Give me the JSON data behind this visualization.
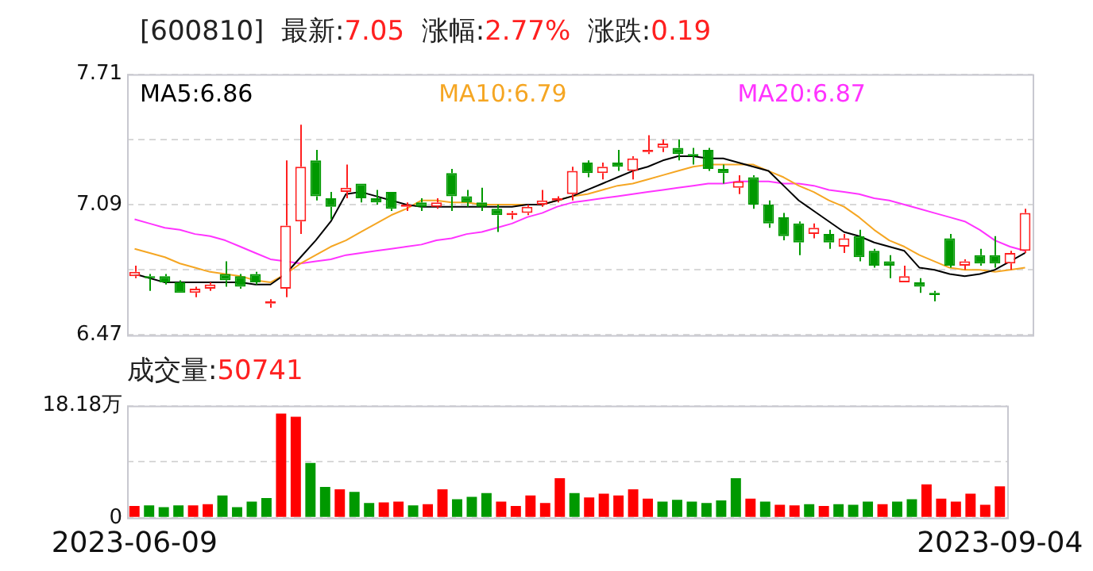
{
  "chart_data": [
    {
      "type": "candlestick",
      "title": "[600810]  最新:7.05  涨幅:2.77%  涨跌:0.19",
      "categories": [
        null,
        null,
        null,
        null,
        null,
        null,
        null,
        null,
        null,
        null,
        null,
        null,
        null,
        null,
        null,
        null,
        null,
        null,
        null,
        null,
        null,
        null,
        null,
        null,
        null,
        null,
        null,
        null,
        null,
        null,
        null,
        null,
        null,
        null,
        null,
        null,
        null,
        null,
        null,
        null,
        null,
        null,
        null,
        null,
        null,
        null,
        null,
        null,
        null,
        null,
        null,
        null,
        null,
        null,
        null,
        null,
        null,
        null,
        null,
        null
      ],
      "ohlc": [
        [
          6.75,
          6.8,
          6.74,
          6.77
        ],
        [
          6.75,
          6.76,
          6.68,
          6.74
        ],
        [
          6.75,
          6.76,
          6.71,
          6.72
        ],
        [
          6.72,
          6.73,
          6.67,
          6.67
        ],
        [
          6.67,
          6.7,
          6.65,
          6.69
        ],
        [
          6.69,
          6.72,
          6.68,
          6.71
        ],
        [
          6.76,
          6.82,
          6.7,
          6.73
        ],
        [
          6.75,
          6.76,
          6.69,
          6.7
        ],
        [
          6.76,
          6.77,
          6.71,
          6.72
        ],
        [
          6.62,
          6.64,
          6.6,
          6.63
        ],
        [
          6.69,
          7.3,
          6.65,
          6.99
        ],
        [
          7.01,
          7.47,
          6.95,
          7.27
        ],
        [
          7.3,
          7.35,
          7.11,
          7.13
        ],
        [
          7.12,
          7.15,
          7.02,
          7.08
        ],
        [
          7.15,
          7.28,
          7.12,
          7.17
        ],
        [
          7.19,
          7.19,
          7.1,
          7.12
        ],
        [
          7.12,
          7.16,
          7.09,
          7.1
        ],
        [
          7.15,
          7.15,
          7.06,
          7.07
        ],
        [
          7.08,
          7.1,
          7.06,
          7.09
        ],
        [
          7.1,
          7.12,
          7.06,
          7.08
        ],
        [
          7.08,
          7.12,
          7.07,
          7.1
        ],
        [
          7.24,
          7.26,
          7.06,
          7.13
        ],
        [
          7.13,
          7.16,
          7.08,
          7.1
        ],
        [
          7.1,
          7.17,
          7.06,
          7.08
        ],
        [
          7.07,
          7.09,
          6.96,
          7.04
        ],
        [
          7.04,
          7.06,
          7.02,
          7.05
        ],
        [
          7.05,
          7.09,
          7.04,
          7.08
        ],
        [
          7.09,
          7.16,
          7.08,
          7.11
        ],
        [
          7.11,
          7.13,
          7.1,
          7.12
        ],
        [
          7.14,
          7.27,
          7.11,
          7.25
        ],
        [
          7.29,
          7.3,
          7.22,
          7.24
        ],
        [
          7.24,
          7.29,
          7.21,
          7.27
        ],
        [
          7.29,
          7.35,
          7.25,
          7.27
        ],
        [
          7.25,
          7.32,
          7.21,
          7.31
        ],
        [
          7.34,
          7.42,
          7.33,
          7.35
        ],
        [
          7.36,
          7.4,
          7.34,
          7.38
        ],
        [
          7.36,
          7.4,
          7.3,
          7.33
        ],
        [
          7.33,
          7.36,
          7.28,
          7.32
        ],
        [
          7.35,
          7.36,
          7.25,
          7.26
        ],
        [
          7.26,
          7.28,
          7.19,
          7.24
        ],
        [
          7.17,
          7.23,
          7.14,
          7.2
        ],
        [
          7.22,
          7.23,
          7.07,
          7.09
        ],
        [
          7.09,
          7.11,
          6.98,
          7.0
        ],
        [
          7.03,
          7.05,
          6.92,
          6.94
        ],
        [
          7.0,
          7.01,
          6.85,
          6.91
        ],
        [
          6.95,
          7.0,
          6.93,
          6.98
        ],
        [
          6.95,
          6.97,
          6.88,
          6.91
        ],
        [
          6.89,
          6.95,
          6.86,
          6.93
        ],
        [
          6.94,
          6.97,
          6.82,
          6.84
        ],
        [
          6.87,
          6.88,
          6.79,
          6.8
        ],
        [
          6.82,
          6.85,
          6.74,
          6.8
        ],
        [
          6.72,
          6.8,
          6.72,
          6.75
        ],
        [
          6.72,
          6.74,
          6.67,
          6.7
        ],
        [
          6.67,
          6.68,
          6.63,
          6.66
        ],
        [
          6.93,
          6.95,
          6.79,
          6.8
        ],
        [
          6.8,
          6.83,
          6.78,
          6.82
        ],
        [
          6.85,
          6.88,
          6.8,
          6.81
        ],
        [
          6.85,
          6.94,
          6.79,
          6.81
        ],
        [
          6.81,
          6.87,
          6.78,
          6.86
        ],
        [
          6.87,
          7.07,
          6.86,
          7.05
        ]
      ],
      "series": [
        {
          "name": "MA5:6.86",
          "type": "line",
          "color": "#000000",
          "values": [
            6.76,
            6.74,
            6.72,
            6.72,
            6.72,
            6.72,
            6.72,
            6.72,
            6.71,
            6.71,
            6.76,
            6.84,
            6.92,
            7.01,
            7.14,
            7.15,
            7.13,
            7.11,
            7.09,
            7.08,
            7.08,
            7.08,
            7.08,
            7.08,
            7.08,
            7.08,
            7.09,
            7.09,
            7.11,
            7.13,
            7.16,
            7.19,
            7.22,
            7.25,
            7.27,
            7.3,
            7.32,
            7.32,
            7.31,
            7.31,
            7.29,
            7.27,
            7.25,
            7.18,
            7.11,
            7.06,
            7.01,
            6.96,
            6.94,
            6.91,
            6.89,
            6.87,
            6.79,
            6.78,
            6.76,
            6.75,
            6.76,
            6.78,
            6.82,
            6.86
          ]
        },
        {
          "name": "MA10:6.79",
          "type": "line",
          "color": "#f5a623",
          "values": [
            6.88,
            6.86,
            6.84,
            6.81,
            6.79,
            6.77,
            6.76,
            6.75,
            6.73,
            6.72,
            6.76,
            6.81,
            6.85,
            6.89,
            6.92,
            6.96,
            7.0,
            7.04,
            7.07,
            7.11,
            7.11,
            7.1,
            7.1,
            7.09,
            7.09,
            7.09,
            7.09,
            7.09,
            7.11,
            7.13,
            7.14,
            7.16,
            7.18,
            7.19,
            7.21,
            7.23,
            7.25,
            7.27,
            7.28,
            7.28,
            7.28,
            7.28,
            7.25,
            7.22,
            7.18,
            7.15,
            7.11,
            7.08,
            7.03,
            6.97,
            6.92,
            6.89,
            6.85,
            6.82,
            6.79,
            6.78,
            6.78,
            6.77,
            6.78,
            6.79
          ]
        },
        {
          "name": "MA20:6.87",
          "type": "line",
          "color": "#ff33ff",
          "values": [
            7.02,
            7.0,
            6.98,
            6.97,
            6.95,
            6.94,
            6.92,
            6.89,
            6.86,
            6.83,
            6.82,
            6.81,
            6.82,
            6.83,
            6.85,
            6.86,
            6.87,
            6.88,
            6.89,
            6.9,
            6.92,
            6.93,
            6.95,
            6.96,
            6.98,
            7.0,
            7.03,
            7.05,
            7.08,
            7.1,
            7.11,
            7.12,
            7.13,
            7.14,
            7.15,
            7.16,
            7.17,
            7.18,
            7.19,
            7.19,
            7.2,
            7.2,
            7.2,
            7.19,
            7.19,
            7.18,
            7.16,
            7.15,
            7.14,
            7.12,
            7.11,
            7.09,
            7.07,
            7.05,
            7.03,
            7.01,
            6.97,
            6.92,
            6.89,
            6.87
          ]
        }
      ],
      "ylim": [
        6.47,
        7.71
      ],
      "yticks": [
        6.47,
        {
          "value": 6.78,
          "label": null
        },
        7.09,
        {
          "value": 7.4,
          "label": null
        },
        7.71
      ],
      "grid": "y",
      "legend": "top",
      "tick_labels": "y"
    },
    {
      "type": "bar",
      "title": "成交量:50741",
      "categories": [
        "2023-06-09",
        null,
        null,
        null,
        null,
        null,
        null,
        null,
        null,
        null,
        null,
        null,
        null,
        null,
        null,
        null,
        null,
        null,
        null,
        null,
        null,
        null,
        null,
        null,
        null,
        null,
        null,
        null,
        null,
        null,
        null,
        null,
        null,
        null,
        null,
        null,
        null,
        null,
        null,
        null,
        null,
        null,
        null,
        null,
        null,
        null,
        null,
        null,
        null,
        null,
        null,
        null,
        null,
        null,
        null,
        null,
        null,
        null,
        null,
        "2023-09-04"
      ],
      "values": [
        1.9,
        2.0,
        1.7,
        2.0,
        2.0,
        2.2,
        3.6,
        1.7,
        2.6,
        3.2,
        16.9,
        16.4,
        8.9,
        5.0,
        4.6,
        4.2,
        2.4,
        2.5,
        2.6,
        2.0,
        2.2,
        4.6,
        3.0,
        3.4,
        4.0,
        2.6,
        1.9,
        3.6,
        2.4,
        6.4,
        4.0,
        3.3,
        3.9,
        3.6,
        4.6,
        3.1,
        2.6,
        2.9,
        2.6,
        2.4,
        2.8,
        6.4,
        3.1,
        2.6,
        2.1,
        2.0,
        2.2,
        1.9,
        2.2,
        2.1,
        2.6,
        2.2,
        2.6,
        3.0,
        5.4,
        3.1,
        2.6,
        3.9,
        2.1,
        5.1
      ],
      "colors": [
        "#ff0000",
        "#009900",
        "#009900",
        "#009900",
        "#ff0000",
        "#ff0000",
        "#009900",
        "#009900",
        "#009900",
        "#009900",
        "#ff0000",
        "#ff0000",
        "#009900",
        "#009900",
        "#ff0000",
        "#009900",
        "#009900",
        "#ff0000",
        "#ff0000",
        "#009900",
        "#ff0000",
        "#ff0000",
        "#009900",
        "#009900",
        "#009900",
        "#ff0000",
        "#ff0000",
        "#ff0000",
        "#ff0000",
        "#ff0000",
        "#009900",
        "#ff0000",
        "#ff0000",
        "#ff0000",
        "#ff0000",
        "#ff0000",
        "#009900",
        "#009900",
        "#009900",
        "#009900",
        "#009900",
        "#009900",
        "#ff0000",
        "#009900",
        "#ff0000",
        "#ff0000",
        "#009900",
        "#ff0000",
        "#009900",
        "#009900",
        "#009900",
        "#ff0000",
        "#009900",
        "#009900",
        "#ff0000",
        "#ff0000",
        "#ff0000",
        "#ff0000",
        "#ff0000",
        "#ff0000"
      ],
      "ylim": [
        0,
        18.18
      ],
      "yticks": [
        0,
        {
          "value": 9.09,
          "label": null
        },
        {
          "value": 18.18,
          "label": "18.18万"
        }
      ],
      "grid": "y"
    }
  ]
}
